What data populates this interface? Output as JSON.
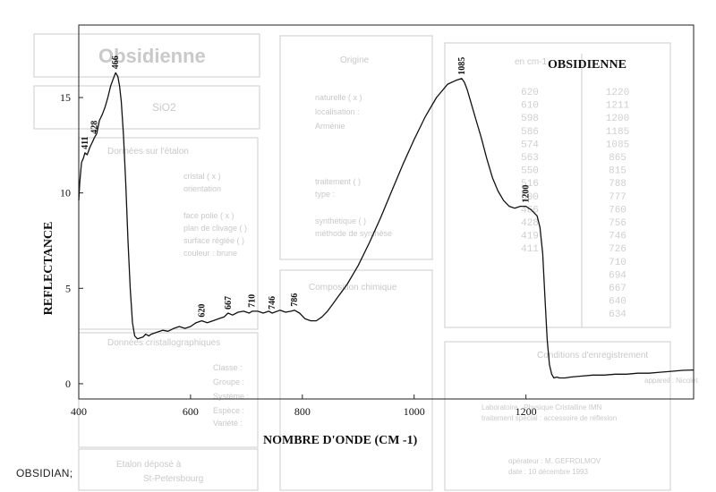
{
  "caption": "OBSIDIAN;",
  "background_form": {
    "title": "Obsidienne",
    "formula": "SiO2",
    "sections": [
      {
        "label": "Origine",
        "lines": [
          "naturelle ( x )",
          "localisation :",
          "Arménie",
          "traitement ( )",
          "type :",
          "synthétique ( )",
          "méthode de synthèse"
        ]
      },
      {
        "label": "Données sur l'étalon",
        "lines": [
          "cristal ( x )",
          "orientation",
          "face polie ( x )",
          "plan de clivage ( )",
          "surface réglée ( )",
          "couleur : brune"
        ]
      },
      {
        "label": "Composition chimique",
        "lines": []
      },
      {
        "label": "Données cristallographiques",
        "lines": [
          "Classe :",
          "Groupe :",
          "Système :",
          "Espèce :",
          "Variété :"
        ]
      },
      {
        "label": "Conditions d'enregistrement",
        "lines": [
          "appareil : Nicolet",
          "Laboratoire : Physique Cristalline IMN",
          "traitement spécial : accessoire de réflexion",
          "opérateur : M. GEFROLMOV",
          "date : 10 décembre 1993"
        ]
      },
      {
        "label": "Etalon déposé à",
        "lines": [
          "St-Petersbourg"
        ]
      }
    ],
    "wavenumbers_header": "en cm-1",
    "wavenumbers_col1": [
      "1220",
      "1211",
      "1200",
      "1185",
      "1085",
      "865",
      "815",
      "788",
      "777",
      "760",
      "756",
      "746",
      "726",
      "710",
      "694",
      "667",
      "640",
      "634"
    ],
    "wavenumbers_col2": [
      "620",
      "610",
      "598",
      "586",
      "574",
      "563",
      "550",
      "516",
      "500",
      "466",
      "428",
      "419",
      "411"
    ]
  },
  "chart_data": {
    "type": "line",
    "title": "OBSIDIENNE",
    "xlabel": "NOMBRE D'ONDE (CM -1)",
    "ylabel": "REFLECTANCE",
    "xlim": [
      400,
      1500
    ],
    "ylim": [
      -0.8,
      18.8
    ],
    "x_ticks": [
      400,
      600,
      800,
      1000,
      1200
    ],
    "y_ticks": [
      0,
      5,
      10,
      15
    ],
    "grid": false,
    "legend": "none",
    "line_color": "#111111",
    "series": [
      {
        "x": [
          400,
          402,
          405,
          408,
          411,
          415,
          420,
          425,
          428,
          432,
          437,
          442,
          447,
          452,
          457,
          462,
          466,
          470,
          473,
          476,
          480,
          484,
          488,
          492,
          496,
          500,
          505,
          510,
          515,
          520,
          525,
          530,
          540,
          550,
          560,
          570,
          580,
          590,
          600,
          610,
          620,
          630,
          640,
          650,
          660,
          667,
          675,
          685,
          695,
          705,
          710,
          720,
          730,
          740,
          746,
          760,
          770,
          780,
          786,
          795,
          805,
          815,
          825,
          835,
          845,
          855,
          865,
          880,
          900,
          920,
          940,
          960,
          980,
          1000,
          1020,
          1040,
          1060,
          1075,
          1085,
          1090,
          1095,
          1100,
          1110,
          1120,
          1130,
          1140,
          1150,
          1160,
          1170,
          1180,
          1190,
          1200,
          1210,
          1220,
          1225,
          1230,
          1234,
          1238,
          1242,
          1246,
          1250,
          1255,
          1260,
          1270,
          1280,
          1300,
          1320,
          1340,
          1360,
          1380,
          1400,
          1420,
          1440,
          1460,
          1480,
          1500
        ],
        "y": [
          9.6,
          10.6,
          11.6,
          11.8,
          12.1,
          12.0,
          12.4,
          12.7,
          12.9,
          13.1,
          13.8,
          14.1,
          14.5,
          15.0,
          15.6,
          16.0,
          16.3,
          16.1,
          15.6,
          14.8,
          13.0,
          10.5,
          7.5,
          5.0,
          3.2,
          2.5,
          2.35,
          2.4,
          2.45,
          2.6,
          2.5,
          2.6,
          2.7,
          2.8,
          2.75,
          2.9,
          3.0,
          2.9,
          3.0,
          3.2,
          3.3,
          3.2,
          3.3,
          3.4,
          3.5,
          3.7,
          3.6,
          3.75,
          3.8,
          3.7,
          3.8,
          3.8,
          3.7,
          3.8,
          3.7,
          3.85,
          3.75,
          3.8,
          3.85,
          3.7,
          3.4,
          3.3,
          3.3,
          3.5,
          3.8,
          4.2,
          4.6,
          5.2,
          6.2,
          7.4,
          8.7,
          10.1,
          11.5,
          12.8,
          14.0,
          15.0,
          15.7,
          15.9,
          16.0,
          15.8,
          15.4,
          14.9,
          13.9,
          12.9,
          11.8,
          10.8,
          10.1,
          9.6,
          9.3,
          9.2,
          9.3,
          9.3,
          9.1,
          8.8,
          8.2,
          6.8,
          4.5,
          2.3,
          1.0,
          0.5,
          0.3,
          0.35,
          0.3,
          0.3,
          0.35,
          0.4,
          0.45,
          0.45,
          0.5,
          0.5,
          0.55,
          0.55,
          0.6,
          0.65,
          0.7,
          0.72
        ]
      }
    ],
    "annotations": [
      {
        "text": "411",
        "x": 411,
        "y": 12.1
      },
      {
        "text": "428",
        "x": 428,
        "y": 12.9
      },
      {
        "text": "466",
        "x": 466,
        "y": 16.3
      },
      {
        "text": "620",
        "x": 620,
        "y": 3.3
      },
      {
        "text": "667",
        "x": 667,
        "y": 3.7
      },
      {
        "text": "710",
        "x": 710,
        "y": 3.8
      },
      {
        "text": "746",
        "x": 746,
        "y": 3.7
      },
      {
        "text": "786",
        "x": 786,
        "y": 3.85
      },
      {
        "text": "1085",
        "x": 1085,
        "y": 16.0
      },
      {
        "text": "1200",
        "x": 1200,
        "y": 9.3
      }
    ]
  }
}
